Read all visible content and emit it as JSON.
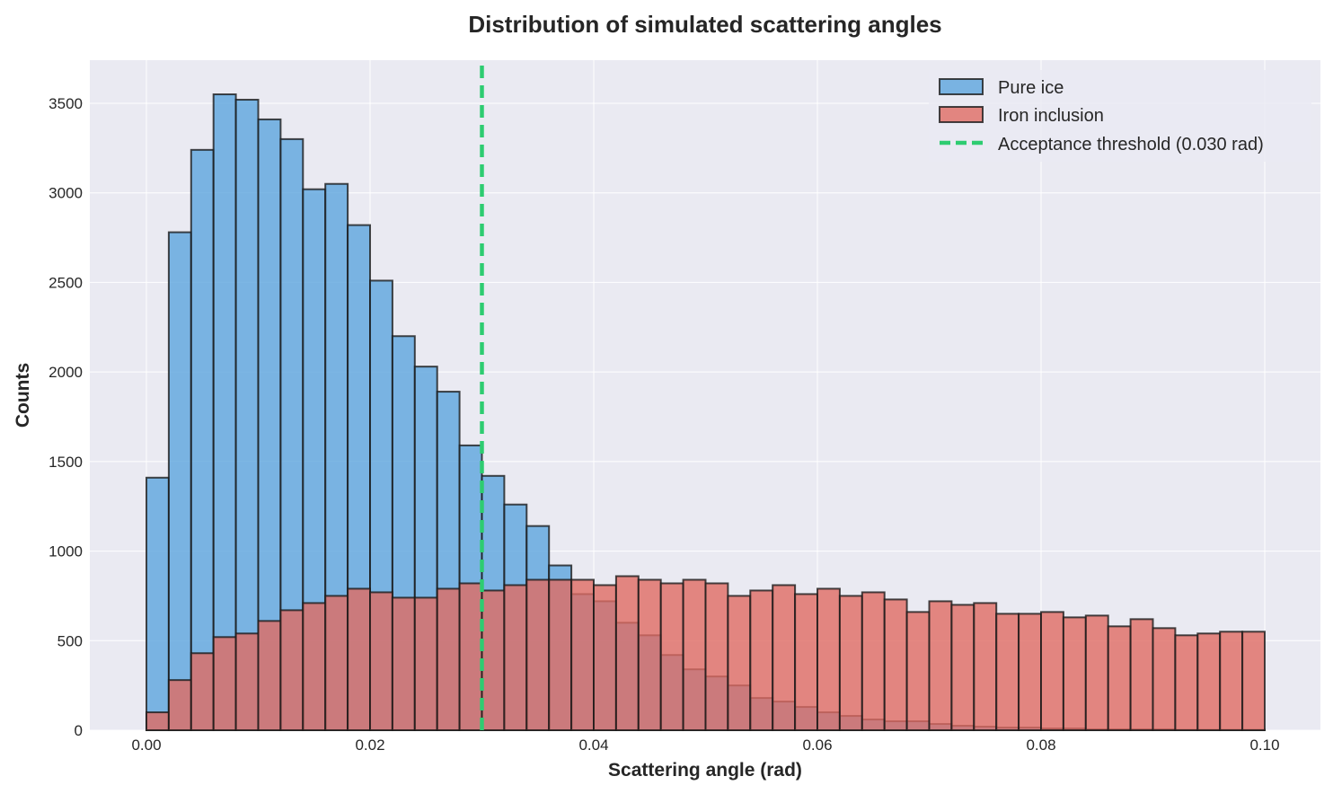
{
  "chart_data": {
    "type": "histogram",
    "title": "Distribution of simulated scattering angles",
    "xlabel": "Scattering angle (rad)",
    "ylabel": "Counts",
    "xlim": [
      -0.005,
      0.105
    ],
    "ylim": [
      0,
      3720
    ],
    "x_ticks": [
      0.0,
      0.02,
      0.04,
      0.06,
      0.08,
      0.1
    ],
    "x_tick_labels": [
      "0.00",
      "0.02",
      "0.04",
      "0.06",
      "0.08",
      "0.10"
    ],
    "y_ticks": [
      0,
      500,
      1000,
      1500,
      2000,
      2500,
      3000,
      3500
    ],
    "y_tick_labels": [
      "0",
      "500",
      "1000",
      "1500",
      "2000",
      "2500",
      "3000",
      "3500"
    ],
    "grid": true,
    "bin_start": 0.0,
    "bin_width": 0.002,
    "series": [
      {
        "name": "Pure ice",
        "color": "#5DA5DD",
        "values": [
          1410,
          2780,
          3240,
          3550,
          3520,
          3410,
          3300,
          3020,
          3050,
          2820,
          2510,
          2200,
          2030,
          1890,
          1590,
          1420,
          1260,
          1140,
          920,
          760,
          720,
          600,
          530,
          420,
          340,
          300,
          250,
          180,
          160,
          130,
          100,
          80,
          60,
          50,
          50,
          35,
          25,
          20,
          15,
          15,
          10,
          10,
          5,
          5,
          5,
          5,
          2,
          2,
          2,
          2
        ]
      },
      {
        "name": "Iron inclusion",
        "color": "#E06B63",
        "values": [
          100,
          280,
          430,
          520,
          540,
          610,
          670,
          710,
          750,
          790,
          770,
          740,
          740,
          790,
          820,
          780,
          810,
          840,
          840,
          840,
          810,
          860,
          840,
          820,
          840,
          820,
          750,
          780,
          810,
          760,
          790,
          750,
          770,
          730,
          660,
          720,
          700,
          710,
          650,
          650,
          660,
          630,
          640,
          580,
          620,
          570,
          530,
          540,
          550,
          550
        ]
      }
    ],
    "threshold": {
      "name": "Acceptance threshold (0.030 rad)",
      "x": 0.03,
      "color": "#2ECC71"
    },
    "legend_position": "top-right"
  }
}
